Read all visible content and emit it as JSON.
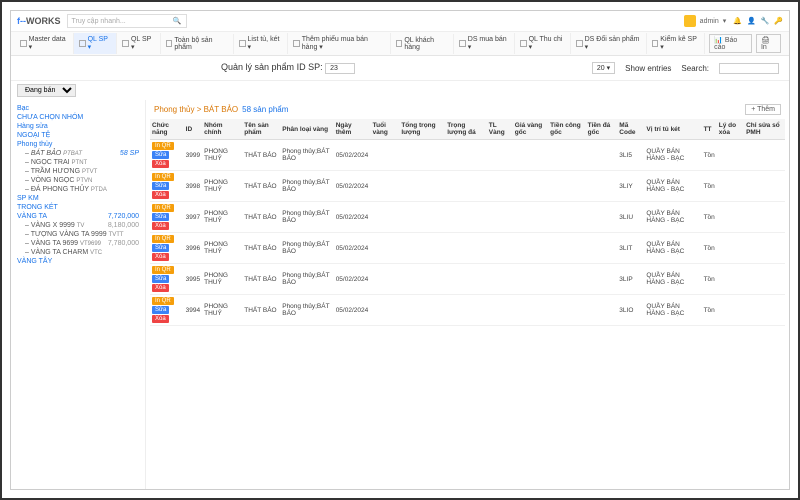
{
  "brand": {
    "pre": "f--",
    "main": "WORKS"
  },
  "search_placeholder": "Truy cập nhanh...",
  "user": "admin",
  "nav": [
    {
      "label": "Master data",
      "drop": true
    },
    {
      "label": "QL SP",
      "drop": true,
      "active": true
    },
    {
      "label": "QL SP",
      "drop": true
    },
    {
      "label": "Toàn bộ sản phẩm"
    },
    {
      "label": "List tủ, két",
      "drop": true
    },
    {
      "label": "Thêm phiếu mua bán hàng",
      "drop": true
    },
    {
      "label": "QL khách hàng"
    },
    {
      "label": "DS mua bán",
      "drop": true
    },
    {
      "label": "QL Thu chi",
      "drop": true
    },
    {
      "label": "DS Đổi sản phẩm",
      "drop": true
    },
    {
      "label": "Kiểm kê SP",
      "drop": true
    }
  ],
  "navright": {
    "baocao": "Báo cáo",
    "in": "In"
  },
  "title": {
    "text": "Quản lý sản phẩm",
    "idlabel": "ID SP:",
    "idval": "23"
  },
  "entries": {
    "val": "20",
    "label": "Show entries"
  },
  "searchlabel": "Search:",
  "statusfilter": "Đang bán",
  "sidebar": [
    {
      "label": "Bạc",
      "type": "grp"
    },
    {
      "label": "CHƯA CHỌN NHÓM",
      "type": "grp"
    },
    {
      "label": "Hàng sửa",
      "type": "grp"
    },
    {
      "label": "NGOẠI TỆ",
      "type": "grp"
    },
    {
      "label": "Phong thủy",
      "type": "grp"
    },
    {
      "label": "– BÁT BẢO",
      "code": "PTBAT",
      "type": "sub",
      "cnt": "58 SP",
      "sel": true
    },
    {
      "label": "– NGỌC TRAI",
      "code": "PTNT",
      "type": "sub"
    },
    {
      "label": "– TRẦM HƯƠNG",
      "code": "PTVT",
      "type": "sub"
    },
    {
      "label": "– VÒNG NGỌC",
      "code": "PTVN",
      "type": "sub"
    },
    {
      "label": "– ĐÁ PHONG THỦY",
      "code": "PTDA",
      "type": "sub"
    },
    {
      "label": "SP KM",
      "type": "grp"
    },
    {
      "label": "TRONG KÉT",
      "type": "grp"
    },
    {
      "label": "VÀNG TA",
      "type": "grp",
      "amt": "7,720,000"
    },
    {
      "label": "– VÀNG X 9999",
      "code": "TV",
      "type": "sub",
      "amt": "8,180,000"
    },
    {
      "label": "– TƯỢNG VÀNG TA 9999",
      "code": "TVTT",
      "type": "sub"
    },
    {
      "label": "– VÀNG TA 9699",
      "code": "VT9699",
      "type": "sub",
      "amt": "7,780,000"
    },
    {
      "label": "– VÀNG TA CHARM",
      "code": "VTC",
      "type": "sub"
    },
    {
      "label": "VÀNG TÂY",
      "type": "grp"
    }
  ],
  "breadcrumb": {
    "a": "Phong thủy > BÁT BẢO",
    "b": "58 sản phẩm",
    "add": "+ Thêm"
  },
  "columns": [
    "Chức năng",
    "ID",
    "Nhóm chính",
    "Tên sản phẩm",
    "Phân loại vàng",
    "Ngày thêm",
    "Tuổi vàng",
    "Tổng trọng lượng",
    "Trọng lượng đá",
    "TL Vàng",
    "Giá vàng gốc",
    "Tiền công gốc",
    "Tiền đá gốc",
    "Mã Code",
    "Vị trí tủ két",
    "TT",
    "Lý do xóa",
    "Chỉ sửa sổ PMH"
  ],
  "actions": {
    "qr": "In QR",
    "edit": "Sửa",
    "del": "Xóa"
  },
  "rows": [
    {
      "id": "3999",
      "grp": "PHONG THUỶ",
      "name": "THẤT BẢO",
      "loai": "Phong thủy;BÁT BẢO",
      "date": "05/02/2024",
      "code": "3LI5",
      "vitri": "QUẦY BÁN HÀNG - BẠC",
      "tt": "Tồn"
    },
    {
      "id": "3998",
      "grp": "PHONG THUỶ",
      "name": "THẤT BẢO",
      "loai": "Phong thủy;BÁT BẢO",
      "date": "05/02/2024",
      "code": "3LIY",
      "vitri": "QUẦY BÁN HÀNG - BẠC",
      "tt": "Tồn"
    },
    {
      "id": "3997",
      "grp": "PHONG THUỶ",
      "name": "THẤT BẢO",
      "loai": "Phong thủy;BÁT BẢO",
      "date": "05/02/2024",
      "code": "3LIU",
      "vitri": "QUẦY BÁN HÀNG - BẠC",
      "tt": "Tồn"
    },
    {
      "id": "3996",
      "grp": "PHONG THUỶ",
      "name": "THẤT BẢO",
      "loai": "Phong thủy;BÁT BẢO",
      "date": "05/02/2024",
      "code": "3LIT",
      "vitri": "QUẦY BÁN HÀNG - BẠC",
      "tt": "Tồn"
    },
    {
      "id": "3995",
      "grp": "PHONG THUỶ",
      "name": "THẤT BẢO",
      "loai": "Phong thủy;BÁT BẢO",
      "date": "05/02/2024",
      "code": "3LIP",
      "vitri": "QUẦY BÁN HÀNG - BẠC",
      "tt": "Tồn"
    },
    {
      "id": "3994",
      "grp": "PHONG THUỶ",
      "name": "THẤT BẢO",
      "loai": "Phong thủy;BÁT BẢO",
      "date": "05/02/2024",
      "code": "3LIO",
      "vitri": "QUẦY BÁN HÀNG - BẠC",
      "tt": "Tồn"
    }
  ],
  "colors": {
    "orange": "#f59e0b",
    "blue": "#3b82f6",
    "red": "#ef4444",
    "link": "#1a73e8",
    "amber": "#d97706"
  }
}
